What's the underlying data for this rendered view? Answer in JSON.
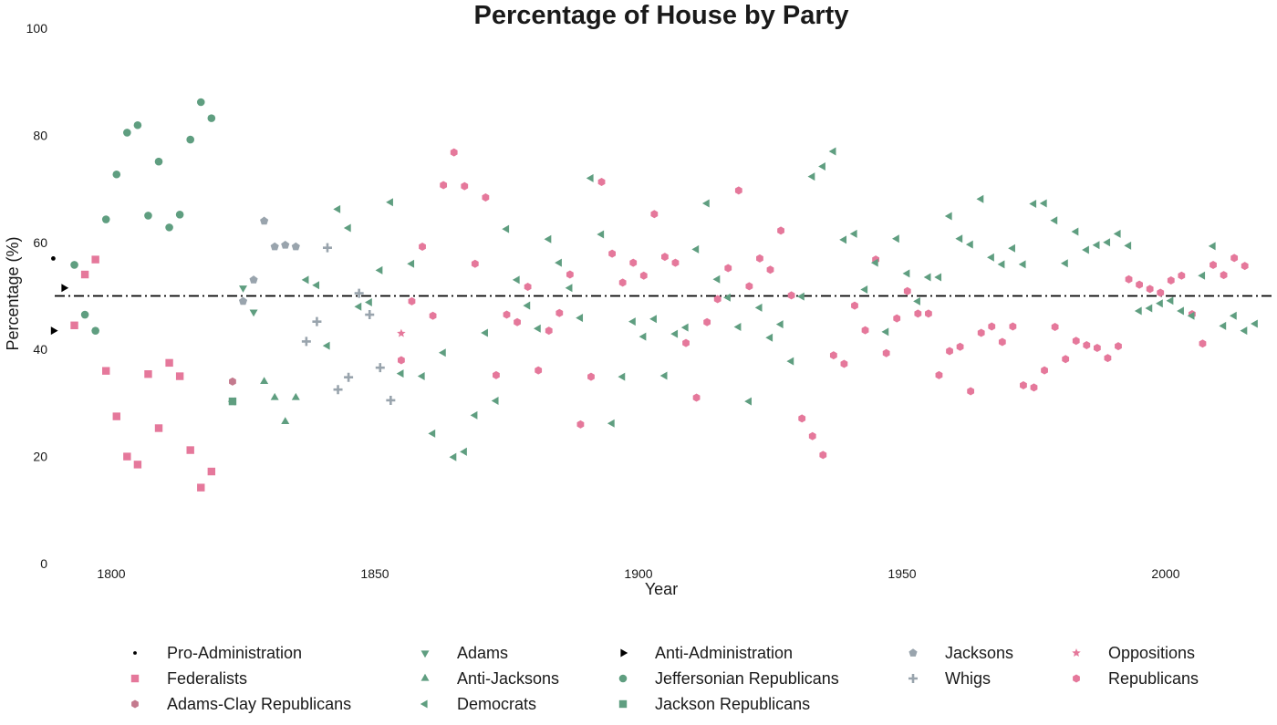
{
  "chart_data": {
    "type": "scatter",
    "title": "Percentage of House by Party",
    "xlabel": "Year",
    "ylabel": "Percentage (%)",
    "xlim": [
      1785,
      2020
    ],
    "ylim": [
      0,
      100
    ],
    "xticks": [
      1800,
      1850,
      1900,
      1950,
      2000
    ],
    "yticks": [
      0,
      20,
      40,
      60,
      80,
      100
    ],
    "grid": false,
    "reference_line": {
      "y": 50,
      "style": "dash-dot",
      "color": "#000000"
    },
    "legend_position": "bottom",
    "series": [
      {
        "name": "Pro-Administration",
        "marker": "small-dot",
        "color": "#000000",
        "points": [
          [
            1789,
            57
          ]
        ]
      },
      {
        "name": "Adams",
        "marker": "triangle-down",
        "color": "#5f9e80",
        "points": [
          [
            1825,
            51.5
          ],
          [
            1827,
            47
          ]
        ]
      },
      {
        "name": "Anti-Administration",
        "marker": "triangle-right",
        "color": "#000000",
        "points": [
          [
            1791,
            51.5
          ],
          [
            1789,
            43.5
          ]
        ]
      },
      {
        "name": "Jacksons",
        "marker": "pentagon",
        "color": "#99a4ad",
        "points": [
          [
            1825,
            49
          ],
          [
            1827,
            53
          ],
          [
            1829,
            64
          ],
          [
            1831,
            59.2
          ],
          [
            1833,
            59.5
          ],
          [
            1835,
            59.2
          ]
        ]
      },
      {
        "name": "Oppositions",
        "marker": "star",
        "color": "#e5789b",
        "points": [
          [
            1855,
            43
          ]
        ]
      },
      {
        "name": "Federalists",
        "marker": "square",
        "color": "#e5789b",
        "points": [
          [
            1793,
            44.5
          ],
          [
            1795,
            54
          ],
          [
            1797,
            56.8
          ],
          [
            1799,
            36
          ],
          [
            1801,
            27.5
          ],
          [
            1803,
            20
          ],
          [
            1805,
            18.5
          ],
          [
            1807,
            35.4
          ],
          [
            1809,
            25.3
          ],
          [
            1811,
            37.5
          ],
          [
            1813,
            35
          ],
          [
            1815,
            21.2
          ],
          [
            1817,
            14.2
          ],
          [
            1819,
            17.2
          ]
        ]
      },
      {
        "name": "Anti-Jacksons",
        "marker": "triangle-up",
        "color": "#5f9e80",
        "points": [
          [
            1829,
            34
          ],
          [
            1831,
            31
          ],
          [
            1833,
            26.5
          ],
          [
            1835,
            31
          ]
        ]
      },
      {
        "name": "Jeffersonian Republicans",
        "marker": "circle",
        "color": "#5f9e80",
        "points": [
          [
            1793,
            55.8
          ],
          [
            1795,
            46.5
          ],
          [
            1797,
            43.5
          ],
          [
            1799,
            64.3
          ],
          [
            1801,
            72.7
          ],
          [
            1803,
            80.5
          ],
          [
            1805,
            81.9
          ],
          [
            1807,
            65
          ],
          [
            1809,
            75.1
          ],
          [
            1811,
            62.8
          ],
          [
            1813,
            65.2
          ],
          [
            1815,
            79.2
          ],
          [
            1817,
            86.2
          ],
          [
            1819,
            83.2
          ]
        ]
      },
      {
        "name": "Whigs",
        "marker": "plus",
        "color": "#99a4ad",
        "points": [
          [
            1837,
            41.5
          ],
          [
            1839,
            45.2
          ],
          [
            1841,
            59
          ],
          [
            1843,
            32.5
          ],
          [
            1845,
            34.8
          ],
          [
            1847,
            50.5
          ],
          [
            1849,
            46.5
          ],
          [
            1851,
            36.6
          ],
          [
            1853,
            30.5
          ]
        ]
      },
      {
        "name": "Republicans",
        "marker": "hexagon",
        "color": "#e5789b",
        "points": [
          [
            1855,
            38
          ],
          [
            1857,
            49
          ],
          [
            1859,
            59.2
          ],
          [
            1861,
            46.3
          ],
          [
            1863,
            70.7
          ],
          [
            1865,
            76.8
          ],
          [
            1867,
            70.5
          ],
          [
            1869,
            56
          ],
          [
            1871,
            68.4
          ],
          [
            1873,
            35.2
          ],
          [
            1875,
            46.5
          ],
          [
            1877,
            45.1
          ],
          [
            1879,
            51.7
          ],
          [
            1881,
            36.1
          ],
          [
            1883,
            43.5
          ],
          [
            1885,
            46.8
          ],
          [
            1887,
            54
          ],
          [
            1889,
            26
          ],
          [
            1891,
            34.9
          ],
          [
            1893,
            71.3
          ],
          [
            1895,
            57.9
          ],
          [
            1897,
            52.5
          ],
          [
            1899,
            56.2
          ],
          [
            1901,
            53.8
          ],
          [
            1903,
            65.3
          ],
          [
            1905,
            57.3
          ],
          [
            1907,
            56.2
          ],
          [
            1909,
            41.2
          ],
          [
            1911,
            31
          ],
          [
            1913,
            45.1
          ],
          [
            1915,
            49.4
          ],
          [
            1917,
            55.2
          ],
          [
            1919,
            69.7
          ],
          [
            1921,
            51.8
          ],
          [
            1923,
            57
          ],
          [
            1925,
            54.9
          ],
          [
            1927,
            62.2
          ],
          [
            1929,
            50.1
          ],
          [
            1931,
            27.1
          ],
          [
            1933,
            23.8
          ],
          [
            1935,
            20.3
          ],
          [
            1937,
            38.9
          ],
          [
            1939,
            37.3
          ],
          [
            1941,
            48.2
          ],
          [
            1943,
            43.6
          ],
          [
            1945,
            56.8
          ],
          [
            1947,
            39.3
          ],
          [
            1949,
            45.8
          ],
          [
            1951,
            50.9
          ],
          [
            1953,
            46.7
          ],
          [
            1955,
            46.7
          ],
          [
            1957,
            35.2
          ],
          [
            1959,
            39.7
          ],
          [
            1961,
            40.5
          ],
          [
            1963,
            32.2
          ],
          [
            1965,
            43.1
          ],
          [
            1967,
            44.3
          ],
          [
            1969,
            41.4
          ],
          [
            1971,
            44.3
          ],
          [
            1973,
            33.3
          ],
          [
            1975,
            32.9
          ],
          [
            1977,
            36.1
          ],
          [
            1979,
            44.2
          ],
          [
            1981,
            38.2
          ],
          [
            1983,
            41.6
          ],
          [
            1985,
            40.8
          ],
          [
            1987,
            40.3
          ],
          [
            1989,
            38.4
          ],
          [
            1991,
            40.6
          ],
          [
            1993,
            53.1
          ],
          [
            1995,
            52.1
          ],
          [
            1997,
            51.3
          ],
          [
            1999,
            50.6
          ],
          [
            2001,
            52.9
          ],
          [
            2003,
            53.8
          ],
          [
            2005,
            46.6
          ],
          [
            2007,
            41.1
          ],
          [
            2009,
            55.8
          ],
          [
            2011,
            53.9
          ],
          [
            2013,
            57.1
          ],
          [
            2015,
            55.6
          ]
        ]
      },
      {
        "name": "Adams-Clay Republicans",
        "marker": "hexagon",
        "color": "#c47a8e",
        "points": [
          [
            1823,
            34
          ]
        ]
      },
      {
        "name": "Democrats",
        "marker": "triangle-left",
        "color": "#5f9e80",
        "points": [
          [
            1823,
            30.3
          ],
          [
            1837,
            53
          ],
          [
            1839,
            52
          ],
          [
            1841,
            40.7
          ],
          [
            1843,
            66.2
          ],
          [
            1845,
            62.7
          ],
          [
            1847,
            48
          ],
          [
            1849,
            48.8
          ],
          [
            1851,
            54.8
          ],
          [
            1853,
            67.5
          ],
          [
            1855,
            35.5
          ],
          [
            1857,
            56
          ],
          [
            1859,
            35
          ],
          [
            1861,
            24.3
          ],
          [
            1863,
            39.4
          ],
          [
            1865,
            19.9
          ],
          [
            1867,
            20.9
          ],
          [
            1869,
            27.7
          ],
          [
            1871,
            43.1
          ],
          [
            1873,
            30.4
          ],
          [
            1875,
            62.5
          ],
          [
            1877,
            53
          ],
          [
            1879,
            48.2
          ],
          [
            1881,
            43.9
          ],
          [
            1883,
            60.6
          ],
          [
            1885,
            56.2
          ],
          [
            1887,
            51.5
          ],
          [
            1889,
            45.9
          ],
          [
            1891,
            72
          ],
          [
            1893,
            61.5
          ],
          [
            1895,
            26.2
          ],
          [
            1897,
            34.9
          ],
          [
            1899,
            45.2
          ],
          [
            1901,
            42.4
          ],
          [
            1903,
            45.7
          ],
          [
            1905,
            35.1
          ],
          [
            1907,
            42.9
          ],
          [
            1909,
            44.1
          ],
          [
            1911,
            58.7
          ],
          [
            1913,
            67.3
          ],
          [
            1915,
            53.1
          ],
          [
            1917,
            49.7
          ],
          [
            1919,
            44.2
          ],
          [
            1921,
            30.3
          ],
          [
            1923,
            47.8
          ],
          [
            1925,
            42.2
          ],
          [
            1927,
            44.7
          ],
          [
            1929,
            37.8
          ],
          [
            1931,
            49.9
          ],
          [
            1933,
            72.3
          ],
          [
            1935,
            74.2
          ],
          [
            1937,
            77
          ],
          [
            1939,
            60.5
          ],
          [
            1941,
            61.6
          ],
          [
            1943,
            51.2
          ],
          [
            1945,
            56.2
          ],
          [
            1947,
            43.3
          ],
          [
            1949,
            60.7
          ],
          [
            1951,
            54.2
          ],
          [
            1953,
            49
          ],
          [
            1955,
            53.5
          ],
          [
            1957,
            53.5
          ],
          [
            1959,
            64.9
          ],
          [
            1961,
            60.7
          ],
          [
            1963,
            59.6
          ],
          [
            1965,
            68.1
          ],
          [
            1967,
            57.2
          ],
          [
            1969,
            55.9
          ],
          [
            1971,
            58.9
          ],
          [
            1973,
            55.9
          ],
          [
            1975,
            67.2
          ],
          [
            1977,
            67.3
          ],
          [
            1979,
            64.1
          ],
          [
            1981,
            56.1
          ],
          [
            1983,
            62
          ],
          [
            1985,
            58.6
          ],
          [
            1987,
            59.5
          ],
          [
            1989,
            60
          ],
          [
            1991,
            61.6
          ],
          [
            1993,
            59.4
          ],
          [
            1995,
            47.2
          ],
          [
            1997,
            47.7
          ],
          [
            1999,
            48.6
          ],
          [
            2001,
            49.1
          ],
          [
            2003,
            47.2
          ],
          [
            2005,
            46.3
          ],
          [
            2007,
            53.8
          ],
          [
            2009,
            59.3
          ],
          [
            2011,
            44.4
          ],
          [
            2013,
            46.3
          ],
          [
            2015,
            43.5
          ],
          [
            2017,
            44.8
          ]
        ]
      },
      {
        "name": "Jackson Republicans",
        "marker": "square",
        "color": "#5f9e80",
        "points": [
          [
            1823,
            30.3
          ]
        ]
      }
    ],
    "legend_entries": [
      [
        "Pro-Administration",
        "Adams",
        "Anti-Administration",
        "Jacksons",
        "Oppositions"
      ],
      [
        "Federalists",
        "Anti-Jacksons",
        "Jeffersonian Republicans",
        "Whigs",
        "Republicans"
      ],
      [
        "Adams-Clay Republicans",
        "Democrats",
        "Jackson Republicans"
      ]
    ]
  }
}
